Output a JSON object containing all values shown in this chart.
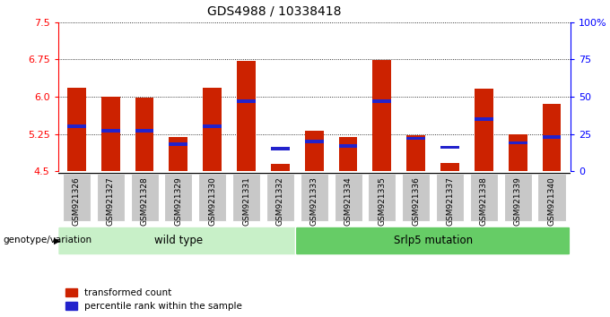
{
  "title": "GDS4988 / 10338418",
  "samples": [
    "GSM921326",
    "GSM921327",
    "GSM921328",
    "GSM921329",
    "GSM921330",
    "GSM921331",
    "GSM921332",
    "GSM921333",
    "GSM921334",
    "GSM921335",
    "GSM921336",
    "GSM921337",
    "GSM921338",
    "GSM921339",
    "GSM921340"
  ],
  "red_values": [
    6.18,
    6.0,
    5.98,
    5.19,
    6.18,
    6.72,
    4.65,
    5.32,
    5.18,
    6.73,
    5.23,
    4.67,
    6.16,
    5.25,
    5.85
  ],
  "blue_percentiles": [
    30,
    27,
    27,
    18,
    30,
    47,
    15,
    20,
    17,
    47,
    22,
    16,
    35,
    19,
    23
  ],
  "ymin": 4.5,
  "ymax": 7.5,
  "y_ticks": [
    4.5,
    5.25,
    6.0,
    6.75,
    7.5
  ],
  "right_yticks": [
    0,
    25,
    50,
    75,
    100
  ],
  "group_labels": [
    "wild type",
    "Srlp5 mutation"
  ],
  "wt_count": 7,
  "group_color_wt": "#c8f0c8",
  "group_color_mut": "#66cc66",
  "bar_color": "#cc2200",
  "dot_color": "#2222cc",
  "tick_bg_color": "#c8c8c8",
  "bar_width": 0.55,
  "legend_red": "transformed count",
  "legend_blue": "percentile rank within the sample",
  "genotype_label": "genotype/variation"
}
